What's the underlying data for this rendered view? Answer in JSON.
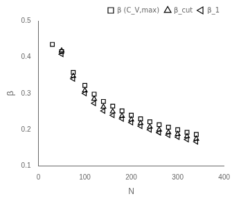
{
  "chart_data": {
    "type": "scatter",
    "xlabel": "N",
    "ylabel": "β",
    "xlim": [
      0,
      400
    ],
    "ylim": [
      0.1,
      0.5
    ],
    "xticks": [
      0,
      100,
      200,
      300,
      400
    ],
    "yticks": [
      0.1,
      0.2,
      0.3,
      0.4,
      0.5
    ],
    "grid": false,
    "legend": "upper right",
    "series": [
      {
        "name": "β (C_V,max)",
        "color": "black",
        "marker": "square",
        "x": [
          30,
          50,
          75,
          100,
          120,
          140,
          160,
          180,
          200,
          220,
          240,
          260,
          280,
          300,
          320,
          340
        ],
        "values": [
          0.435,
          0.415,
          0.358,
          0.322,
          0.298,
          0.278,
          0.265,
          0.252,
          0.24,
          0.23,
          0.222,
          0.214,
          0.207,
          0.2,
          0.193,
          0.187
        ]
      },
      {
        "name": "β_cut",
        "color": "black",
        "marker": "triangle-up",
        "x": [
          50,
          75,
          100,
          120,
          140,
          160,
          180,
          200,
          220,
          240,
          260,
          280,
          300,
          320,
          340
        ],
        "values": [
          0.418,
          0.348,
          0.308,
          0.285,
          0.263,
          0.25,
          0.238,
          0.228,
          0.218,
          0.208,
          0.2,
          0.193,
          0.188,
          0.182,
          0.175
        ]
      },
      {
        "name": "β_1",
        "color": "black",
        "marker": "triangle-left",
        "x": [
          50,
          75,
          100,
          120,
          140,
          160,
          180,
          200,
          220,
          240,
          260,
          280,
          300,
          320,
          340
        ],
        "values": [
          0.408,
          0.34,
          0.3,
          0.273,
          0.252,
          0.24,
          0.23,
          0.22,
          0.21,
          0.2,
          0.192,
          0.185,
          0.18,
          0.173,
          0.167
        ]
      }
    ]
  }
}
